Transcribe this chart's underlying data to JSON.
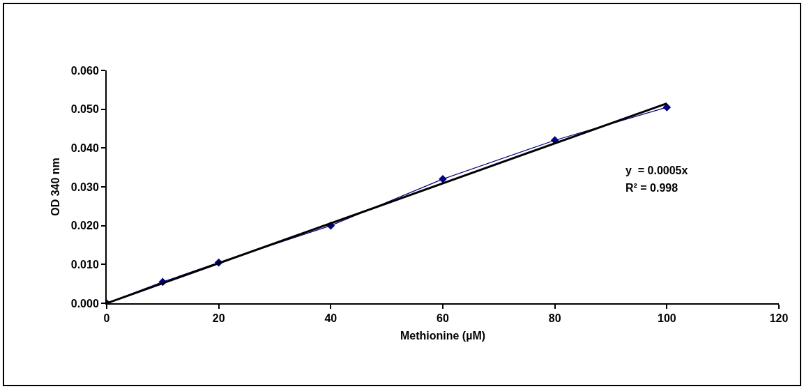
{
  "chart_data": {
    "type": "line",
    "xlabel": "Methionine (µM)",
    "ylabel": "OD 340 nm",
    "x": [
      0,
      10,
      20,
      40,
      60,
      80,
      100
    ],
    "series": [
      {
        "color": "#000080",
        "values": [
          0,
          0.0055,
          0.0105,
          0.02,
          0.032,
          0.042,
          0.0505
        ],
        "marker": "diamond",
        "line_style": "solid"
      },
      {
        "type": "line",
        "color": "#000000",
        "x": [
          0,
          100
        ],
        "values": [
          0,
          0.0515
        ],
        "marker": "none",
        "line_style": "solid"
      }
    ],
    "xlim": [
      0,
      120
    ],
    "xticks": [
      0,
      20,
      40,
      60,
      80,
      100,
      120
    ],
    "ylim": [
      0,
      0.06
    ],
    "yticks": [
      {
        "value": 0,
        "label": "0.000"
      },
      {
        "value": 0.01,
        "label": "0.010"
      },
      {
        "value": 0.02,
        "label": "0.020"
      },
      {
        "value": 0.03,
        "label": "0.030"
      },
      {
        "value": 0.04,
        "label": "0.040"
      },
      {
        "value": 0.05,
        "label": "0.050"
      },
      {
        "value": 0.06,
        "label": "0.060"
      }
    ],
    "annotations": [
      "y  = 0.0005x",
      "R² = 0.998"
    ],
    "grid": false
  }
}
